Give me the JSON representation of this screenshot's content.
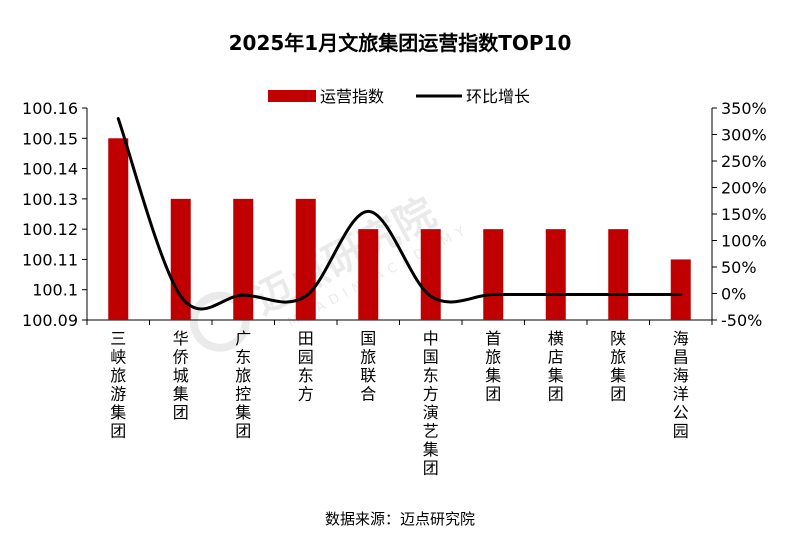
{
  "chart_data": {
    "type": "bar+line",
    "title": "2025年1月文旅集团运营指数TOP10",
    "categories": [
      "三峡旅游集团",
      "华侨城集团",
      "广东旅控集团",
      "田园东方",
      "国旅联合",
      "中国东方演艺集团",
      "首旅集团",
      "横店集团",
      "陕旅集团",
      "海昌海洋公园"
    ],
    "series": [
      {
        "name": "运营指数",
        "type": "bar",
        "axis": "left",
        "color": "#c00000",
        "values": [
          100.15,
          100.13,
          100.13,
          100.13,
          100.12,
          100.12,
          100.12,
          100.12,
          100.12,
          100.11
        ]
      },
      {
        "name": "环比增长",
        "type": "line",
        "axis": "right",
        "color": "#000000",
        "values": [
          330,
          -5,
          -3,
          -5,
          155,
          -5,
          -2,
          -2,
          -2,
          -2
        ]
      }
    ],
    "y_left": {
      "min": 100.09,
      "max": 100.16,
      "step": 0.01,
      "tick_labels": [
        "100.09",
        "100.1",
        "100.11",
        "100.12",
        "100.13",
        "100.14",
        "100.15",
        "100.16"
      ]
    },
    "y_right": {
      "min": -50,
      "max": 350,
      "step": 50,
      "tick_labels": [
        "-50%",
        "0%",
        "50%",
        "100%",
        "150%",
        "200%",
        "250%",
        "300%",
        "350%"
      ]
    },
    "legend": {
      "position": "top-center",
      "items": [
        "运营指数",
        "环比增长"
      ]
    },
    "grid": false
  },
  "watermark": {
    "text": "迈点研究院",
    "sub": "MEADIN ACADEMY"
  },
  "source": "数据来源：迈点研究院"
}
